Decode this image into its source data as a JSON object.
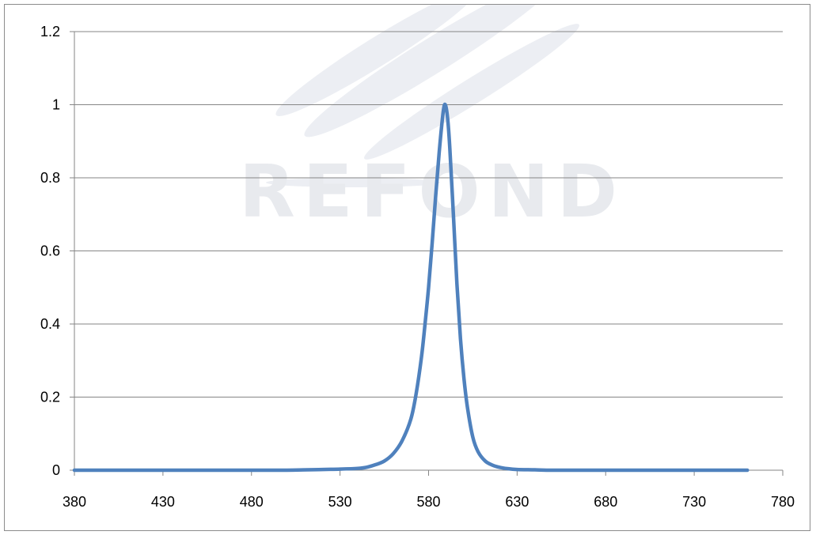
{
  "watermark": {
    "text": "REFOND"
  },
  "chart_data": {
    "type": "line",
    "title": "",
    "xlabel": "",
    "ylabel": "",
    "xlim": [
      380,
      780
    ],
    "ylim": [
      0,
      1.2
    ],
    "x_ticks": [
      380,
      430,
      480,
      530,
      580,
      630,
      680,
      730,
      780
    ],
    "y_ticks": [
      0,
      0.2,
      0.4,
      0.6,
      0.8,
      1,
      1.2
    ],
    "y_tick_labels": [
      "0",
      "0.2",
      "0.4",
      "0.6",
      "0.8",
      "1",
      "1.2"
    ],
    "grid": {
      "horizontal": true,
      "vertical": false
    },
    "legend": "none",
    "series": [
      {
        "color": "#4f81bd",
        "x": [
          380,
          400,
          420,
          440,
          460,
          480,
          500,
          520,
          530,
          540,
          545,
          550,
          555,
          560,
          565,
          570,
          573,
          576,
          578,
          580,
          582,
          584,
          586,
          588,
          589,
          590,
          591,
          592,
          594,
          596,
          598,
          600,
          602,
          605,
          608,
          612,
          616,
          620,
          625,
          630,
          640,
          650,
          670,
          700,
          730,
          760
        ],
        "y": [
          0,
          0,
          0,
          0,
          0,
          0,
          0,
          0.002,
          0.003,
          0.005,
          0.008,
          0.015,
          0.025,
          0.045,
          0.08,
          0.14,
          0.21,
          0.31,
          0.4,
          0.5,
          0.62,
          0.75,
          0.87,
          0.97,
          1.0,
          0.99,
          0.95,
          0.88,
          0.7,
          0.51,
          0.36,
          0.25,
          0.17,
          0.09,
          0.05,
          0.025,
          0.014,
          0.008,
          0.004,
          0.002,
          0.001,
          0,
          0,
          0,
          0,
          0
        ]
      }
    ]
  }
}
